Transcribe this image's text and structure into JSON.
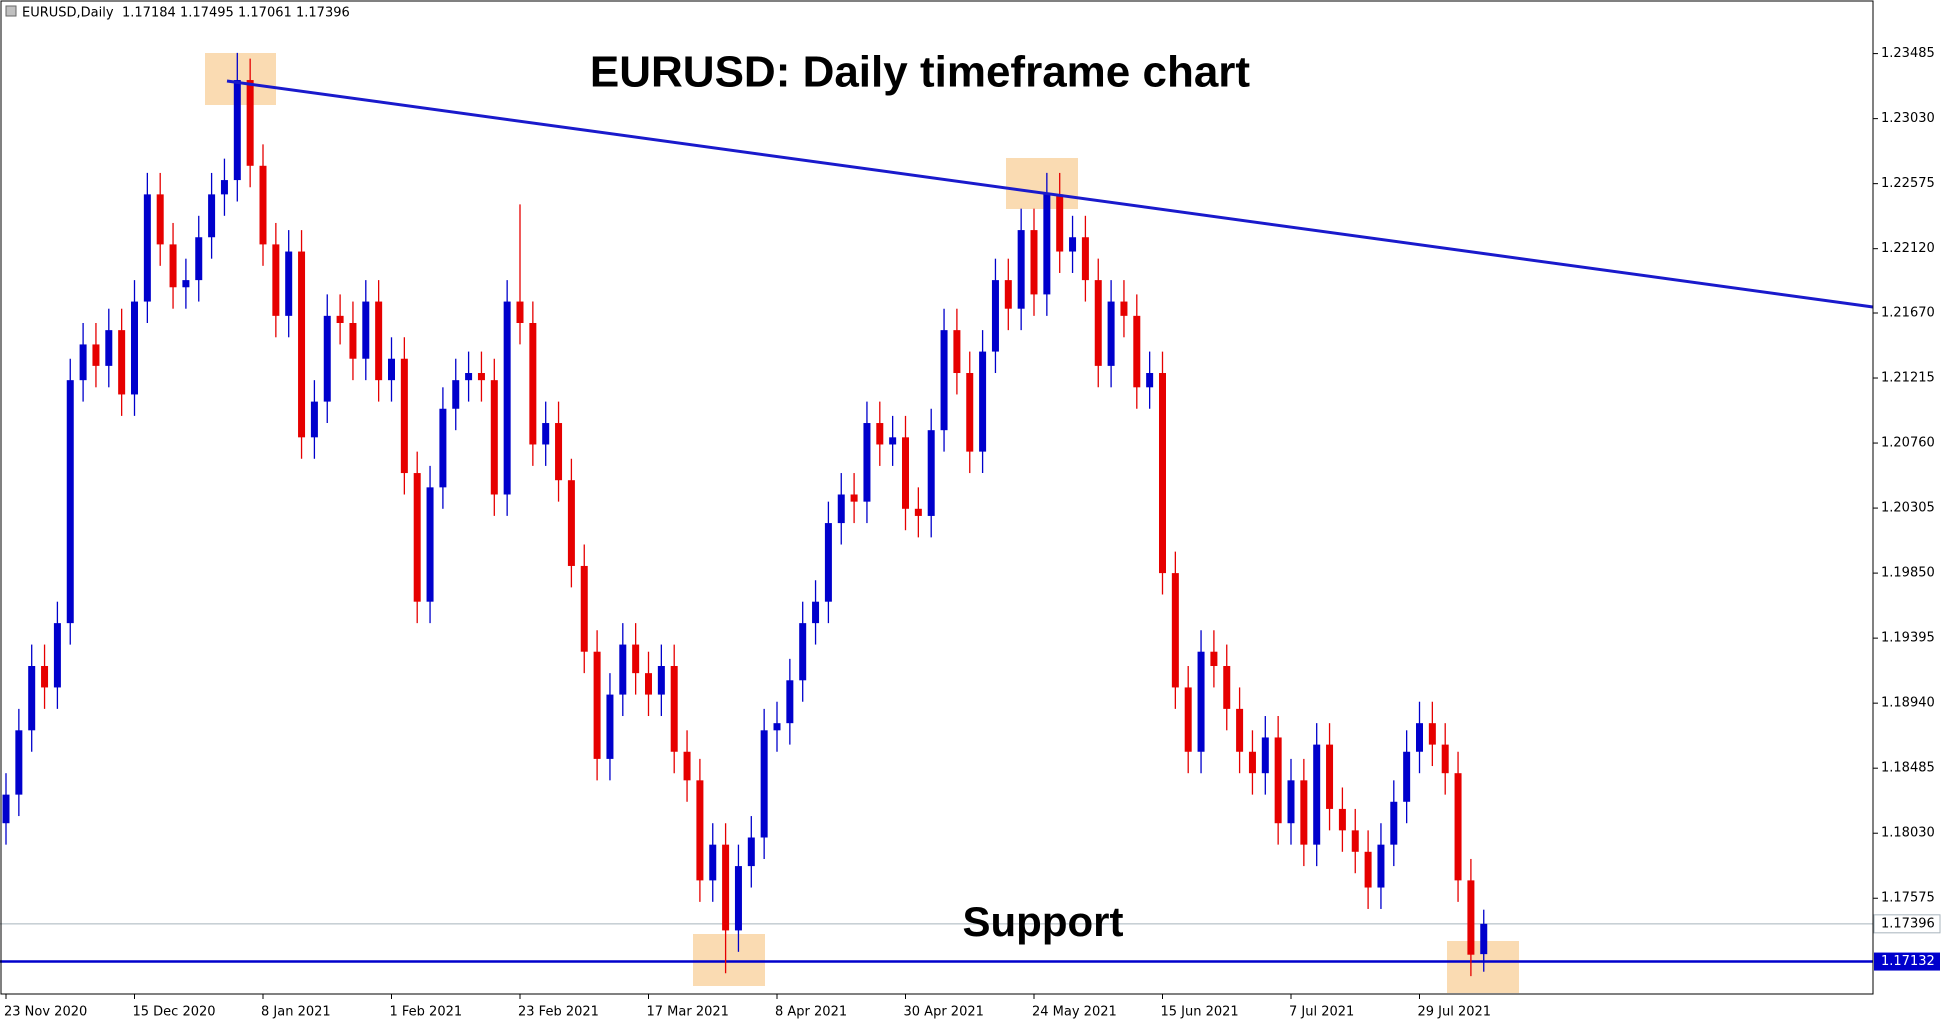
{
  "chart_data": {
    "type": "candlestick",
    "title": "EURUSD: Daily timeframe chart",
    "annotation": "Support",
    "header": {
      "symbol": "EURUSD,Daily",
      "values": [
        1.17184,
        1.17495,
        1.17061,
        1.17396
      ]
    },
    "up_color": "#0000cc",
    "down_color": "#e60000",
    "support_level": 1.17132,
    "support_color": "#0000cc",
    "grid": false,
    "ylim": [
      1.16905,
      1.2386
    ],
    "yticks": [
      1.23485,
      {
        "value": 1.2303,
        "label": "1.23030"
      },
      1.22575,
      {
        "value": 1.2212,
        "label": "1.22120"
      },
      {
        "value": 1.2167,
        "label": "1.21670"
      },
      1.21215,
      {
        "value": 1.2076,
        "label": "1.20760"
      },
      1.20305,
      {
        "value": 1.1985,
        "label": "1.19850"
      },
      1.19395,
      {
        "value": 1.1894,
        "label": "1.18940"
      },
      1.18485,
      {
        "value": 1.1803,
        "label": "1.18030"
      },
      1.17575
    ],
    "categories": [
      "23 Nov 2020",
      null,
      null,
      null,
      null,
      null,
      null,
      null,
      null,
      null,
      "15 Dec 2020",
      null,
      null,
      null,
      null,
      null,
      null,
      null,
      null,
      null,
      "8 Jan 2021",
      null,
      null,
      null,
      null,
      null,
      null,
      null,
      null,
      null,
      "1 Feb 2021",
      null,
      null,
      null,
      null,
      null,
      null,
      null,
      null,
      null,
      "23 Feb 2021",
      null,
      null,
      null,
      null,
      null,
      null,
      null,
      null,
      null,
      "17 Mar 2021",
      null,
      null,
      null,
      null,
      null,
      null,
      null,
      null,
      null,
      "8 Apr 2021",
      null,
      null,
      null,
      null,
      null,
      null,
      null,
      null,
      null,
      "30 Apr 2021",
      null,
      null,
      null,
      null,
      null,
      null,
      null,
      null,
      null,
      "24 May 2021",
      null,
      null,
      null,
      null,
      null,
      null,
      null,
      null,
      null,
      "15 Jun 2021",
      null,
      null,
      null,
      null,
      null,
      null,
      null,
      null,
      null,
      "7 Jul 2021",
      null,
      null,
      null,
      null,
      null,
      null,
      null,
      null,
      null,
      "29 Jul 2021",
      null,
      null,
      null,
      null,
      null
    ],
    "open": [
      1.181,
      1.183,
      1.1875,
      1.192,
      1.1905,
      1.195,
      1.212,
      1.2145,
      1.213,
      1.2155,
      1.211,
      1.2175,
      1.225,
      1.2215,
      1.2185,
      1.219,
      1.222,
      1.225,
      1.226,
      1.233,
      1.227,
      1.2215,
      1.2165,
      1.221,
      1.208,
      1.2105,
      1.2165,
      1.216,
      1.2135,
      1.2175,
      1.212,
      1.2135,
      1.2055,
      1.1965,
      1.2045,
      1.21,
      1.212,
      1.2125,
      1.212,
      1.204,
      1.2175,
      1.216,
      1.2075,
      1.209,
      1.205,
      1.199,
      1.193,
      1.1855,
      1.19,
      1.1935,
      1.1915,
      1.19,
      1.192,
      1.186,
      1.184,
      1.177,
      1.1795,
      1.1735,
      1.178,
      1.18,
      1.1875,
      1.188,
      1.191,
      1.195,
      1.1965,
      1.202,
      1.204,
      1.2035,
      1.209,
      1.2075,
      1.208,
      1.203,
      1.2025,
      1.2085,
      1.2155,
      1.2125,
      1.207,
      1.214,
      1.219,
      1.217,
      1.2225,
      1.218,
      1.225,
      1.221,
      1.222,
      1.219,
      1.213,
      1.2175,
      1.2165,
      1.2115,
      1.2125,
      1.1985,
      1.1905,
      1.186,
      1.193,
      1.192,
      1.189,
      1.186,
      1.1845,
      1.187,
      1.181,
      1.184,
      1.1795,
      1.1865,
      1.182,
      1.1805,
      1.179,
      1.1765,
      1.1795,
      1.1825,
      1.186,
      1.188,
      1.1865,
      1.1845,
      1.177,
      1.17184
    ],
    "high": [
      1.1845,
      1.189,
      1.1935,
      1.1935,
      1.1965,
      1.2135,
      1.216,
      1.216,
      1.217,
      1.217,
      1.219,
      1.2265,
      1.2265,
      1.223,
      1.2205,
      1.2235,
      1.2265,
      1.2275,
      1.2349,
      1.2345,
      1.2285,
      1.223,
      1.2225,
      1.2225,
      1.212,
      1.218,
      1.218,
      1.2175,
      1.219,
      1.219,
      1.215,
      1.215,
      1.207,
      1.206,
      1.2115,
      1.2135,
      1.214,
      1.214,
      1.2135,
      1.219,
      1.2243,
      1.2175,
      1.2105,
      1.2105,
      1.2065,
      1.2005,
      1.1945,
      1.1915,
      1.195,
      1.195,
      1.193,
      1.1935,
      1.1935,
      1.1875,
      1.1855,
      1.181,
      1.181,
      1.1795,
      1.1815,
      1.189,
      1.1895,
      1.1925,
      1.1965,
      1.198,
      1.2035,
      1.2055,
      1.2055,
      1.2105,
      1.2105,
      1.2095,
      1.2095,
      1.2045,
      1.21,
      1.217,
      1.217,
      1.214,
      1.2155,
      1.2205,
      1.2205,
      1.224,
      1.224,
      1.2265,
      1.2265,
      1.2235,
      1.2235,
      1.2205,
      1.219,
      1.219,
      1.218,
      1.214,
      1.214,
      1.2,
      1.192,
      1.1945,
      1.1945,
      1.1935,
      1.1905,
      1.1875,
      1.1885,
      1.1885,
      1.1855,
      1.1855,
      1.188,
      1.188,
      1.1835,
      1.182,
      1.1805,
      1.181,
      1.184,
      1.1875,
      1.1895,
      1.1895,
      1.188,
      1.186,
      1.1785,
      1.17495
    ],
    "low": [
      1.1795,
      1.1815,
      1.186,
      1.189,
      1.189,
      1.1935,
      1.2105,
      1.2115,
      1.2115,
      1.2095,
      1.2095,
      1.216,
      1.22,
      1.217,
      1.217,
      1.2175,
      1.2205,
      1.2235,
      1.2245,
      1.2255,
      1.22,
      1.215,
      1.215,
      1.2065,
      1.2065,
      1.209,
      1.2145,
      1.212,
      1.212,
      1.2105,
      1.2105,
      1.204,
      1.195,
      1.195,
      1.203,
      1.2085,
      1.2105,
      1.2105,
      1.2025,
      1.2025,
      1.2145,
      1.206,
      1.206,
      1.2035,
      1.1975,
      1.1915,
      1.184,
      1.184,
      1.1885,
      1.19,
      1.1885,
      1.1885,
      1.1845,
      1.1825,
      1.1755,
      1.1755,
      1.1705,
      1.172,
      1.1765,
      1.1785,
      1.186,
      1.1865,
      1.1895,
      1.1935,
      1.195,
      1.2005,
      1.202,
      1.202,
      1.206,
      1.206,
      1.2015,
      1.201,
      1.201,
      1.207,
      1.211,
      1.2055,
      1.2055,
      1.2125,
      1.2155,
      1.2155,
      1.2165,
      1.2165,
      1.2195,
      1.2195,
      1.2175,
      1.2115,
      1.2115,
      1.215,
      1.21,
      1.21,
      1.197,
      1.189,
      1.1845,
      1.1845,
      1.1905,
      1.1875,
      1.1845,
      1.183,
      1.183,
      1.1795,
      1.1795,
      1.178,
      1.178,
      1.1805,
      1.179,
      1.1775,
      1.175,
      1.175,
      1.178,
      1.181,
      1.1845,
      1.185,
      1.183,
      1.1755,
      1.1703,
      1.17061
    ],
    "close": [
      1.183,
      1.1875,
      1.192,
      1.1905,
      1.195,
      1.212,
      1.2145,
      1.213,
      1.2155,
      1.211,
      1.2175,
      1.225,
      1.2215,
      1.2185,
      1.219,
      1.222,
      1.225,
      1.226,
      1.233,
      1.227,
      1.2215,
      1.2165,
      1.221,
      1.208,
      1.2105,
      1.2165,
      1.216,
      1.2135,
      1.2175,
      1.212,
      1.2135,
      1.2055,
      1.1965,
      1.2045,
      1.21,
      1.212,
      1.2125,
      1.212,
      1.204,
      1.2175,
      1.216,
      1.2075,
      1.209,
      1.205,
      1.199,
      1.193,
      1.1855,
      1.19,
      1.1935,
      1.1915,
      1.19,
      1.192,
      1.186,
      1.184,
      1.177,
      1.1795,
      1.1735,
      1.178,
      1.18,
      1.1875,
      1.188,
      1.191,
      1.195,
      1.1965,
      1.202,
      1.204,
      1.2035,
      1.209,
      1.2075,
      1.208,
      1.203,
      1.2025,
      1.2085,
      1.2155,
      1.2125,
      1.207,
      1.214,
      1.219,
      1.217,
      1.2225,
      1.218,
      1.225,
      1.221,
      1.222,
      1.219,
      1.213,
      1.2175,
      1.2165,
      1.2115,
      1.2125,
      1.1985,
      1.1905,
      1.186,
      1.193,
      1.192,
      1.189,
      1.186,
      1.1845,
      1.187,
      1.181,
      1.184,
      1.1795,
      1.1865,
      1.182,
      1.1805,
      1.179,
      1.1765,
      1.1795,
      1.1825,
      1.186,
      1.188,
      1.1865,
      1.1845,
      1.177,
      1.1718,
      1.17396
    ]
  }
}
